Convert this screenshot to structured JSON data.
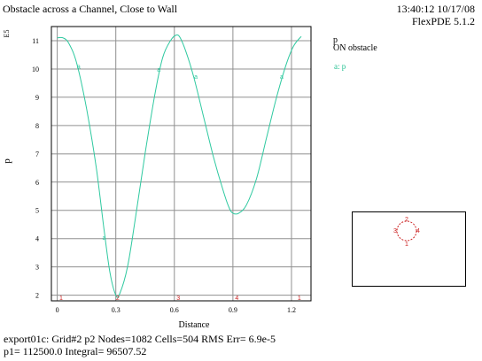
{
  "header": {
    "title": "Obstacle across a Channel, Close to Wall",
    "timestamp": "13:40:12 10/17/08",
    "version": "FlexPDE 5.1.2"
  },
  "legend": {
    "variable": "p",
    "subtitle": "ON obstacle",
    "series_label": "a: p"
  },
  "footer": {
    "line1": "export01c:  Grid#2  p2  Nodes=1082 Cells=504 RMS Err= 6.9e-5",
    "line2": "p1=  112500.0  Integral=  96507.52"
  },
  "colors": {
    "curve": "#2fc9a0",
    "markers": "#cc2222",
    "grid": "#909090"
  },
  "chart_data": {
    "type": "line",
    "xlabel": "Distance",
    "ylabel": "p",
    "y_scale_label": "E5",
    "xlim": [
      -0.03,
      1.3
    ],
    "ylim": [
      1.8,
      11.5
    ],
    "x_ticks": [
      0,
      0.3,
      0.6,
      0.9,
      1.2
    ],
    "x_tick_labels": [
      "0",
      "0.3",
      "0.6",
      "0.9",
      "1.2"
    ],
    "y_ticks": [
      2,
      3,
      4,
      5,
      6,
      7,
      8,
      9,
      10,
      11
    ],
    "y_tick_labels": [
      "2",
      "3",
      "4",
      "5",
      "6",
      "7",
      "8",
      "9",
      "10",
      "11"
    ],
    "series": [
      {
        "x": [
          0,
          0.03,
          0.06,
          0.1,
          0.15,
          0.2,
          0.24,
          0.27,
          0.3,
          0.32,
          0.36,
          0.4,
          0.45,
          0.5,
          0.54,
          0.58,
          0.61,
          0.63,
          0.66,
          0.7,
          0.75,
          0.8,
          0.85,
          0.88,
          0.9,
          0.93,
          0.97,
          1.02,
          1.07,
          1.12,
          1.17,
          1.21,
          1.25
        ],
        "y": [
          11.1,
          11.1,
          10.9,
          10.2,
          8.6,
          6.5,
          4.3,
          2.8,
          2.0,
          2.05,
          3.0,
          4.7,
          7.0,
          9.1,
          10.4,
          11.0,
          11.2,
          11.1,
          10.6,
          9.7,
          8.3,
          6.9,
          5.7,
          5.1,
          4.9,
          4.9,
          5.2,
          6.1,
          7.5,
          8.9,
          10.1,
          10.8,
          11.15
        ]
      }
    ],
    "markers": [
      {
        "label": "1",
        "x": 0.02
      },
      {
        "label": "2",
        "x": 0.31
      },
      {
        "label": "3",
        "x": 0.62
      },
      {
        "label": "4",
        "x": 0.92
      },
      {
        "label": "1",
        "x": 1.24
      }
    ],
    "series_markers": [
      {
        "label": "a",
        "x": 0.11,
        "y": 10.1
      },
      {
        "label": "a",
        "x": 0.24,
        "y": 4.05
      },
      {
        "label": "a",
        "x": 0.52,
        "y": 10.0
      },
      {
        "label": "a",
        "x": 0.71,
        "y": 9.75
      },
      {
        "label": "a",
        "x": 1.15,
        "y": 9.75
      }
    ]
  },
  "inset": {
    "markers": [
      "1",
      "2",
      "3",
      "4"
    ]
  }
}
